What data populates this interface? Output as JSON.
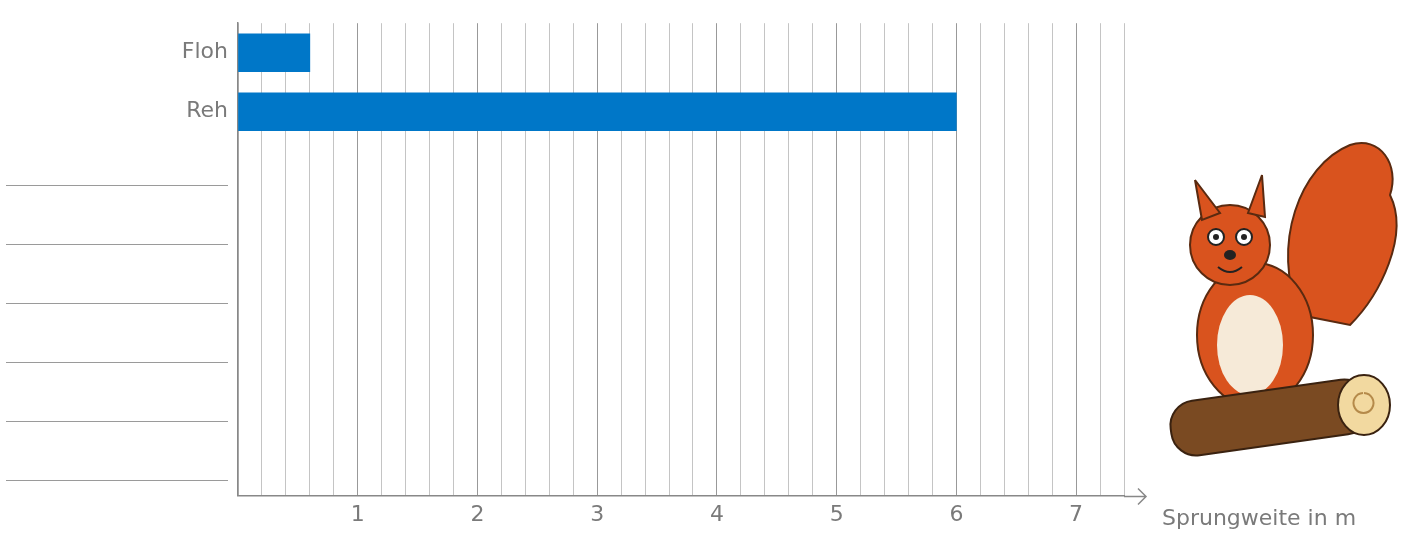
{
  "chart_data": {
    "type": "bar",
    "orientation": "horizontal",
    "categories": [
      "Floh",
      "Reh",
      null,
      null,
      null,
      null,
      null,
      null
    ],
    "values": [
      0.6,
      6,
      null,
      null,
      null,
      null,
      null,
      null
    ],
    "color": "#0077c8",
    "xlabel": "Sprungweite in m",
    "xlim": [
      0,
      7.4
    ],
    "xticks": [
      1,
      2,
      3,
      4,
      5,
      6,
      7
    ],
    "grid": true
  }
}
